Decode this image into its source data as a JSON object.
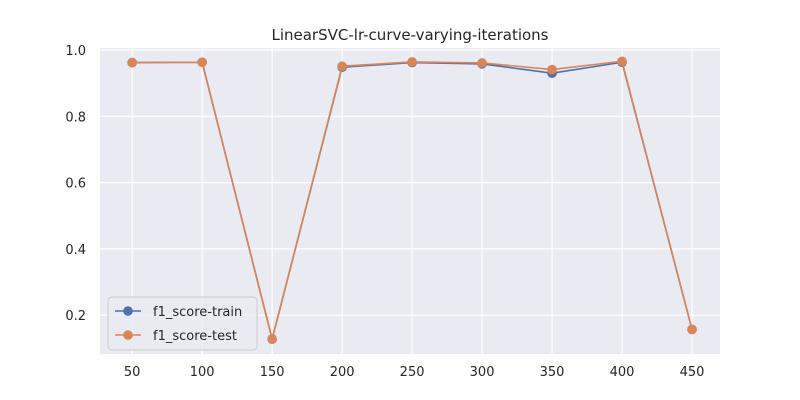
{
  "chart_data": {
    "type": "line",
    "title": "LinearSVC-lr-curve-varying-iterations",
    "xlabel": "",
    "ylabel": "",
    "x": [
      50,
      100,
      150,
      200,
      250,
      300,
      350,
      400,
      450
    ],
    "xticks": [
      "50",
      "100",
      "150",
      "200",
      "250",
      "300",
      "350",
      "400",
      "450"
    ],
    "yticks": [
      "0.2",
      "0.4",
      "0.6",
      "0.8",
      "1.0"
    ],
    "xlim": [
      27,
      470
    ],
    "ylim": [
      0.083,
      1.006
    ],
    "grid": true,
    "legend_position": "lower-left",
    "series": [
      {
        "name": "f1_score-train",
        "color": "#4c72b0",
        "values": [
          0.962,
          0.963,
          0.128,
          0.948,
          0.962,
          0.958,
          0.93,
          0.963,
          0.157
        ]
      },
      {
        "name": "f1_score-test",
        "color": "#dd8452",
        "values": [
          0.962,
          0.963,
          0.128,
          0.951,
          0.964,
          0.961,
          0.941,
          0.966,
          0.157
        ]
      }
    ]
  }
}
